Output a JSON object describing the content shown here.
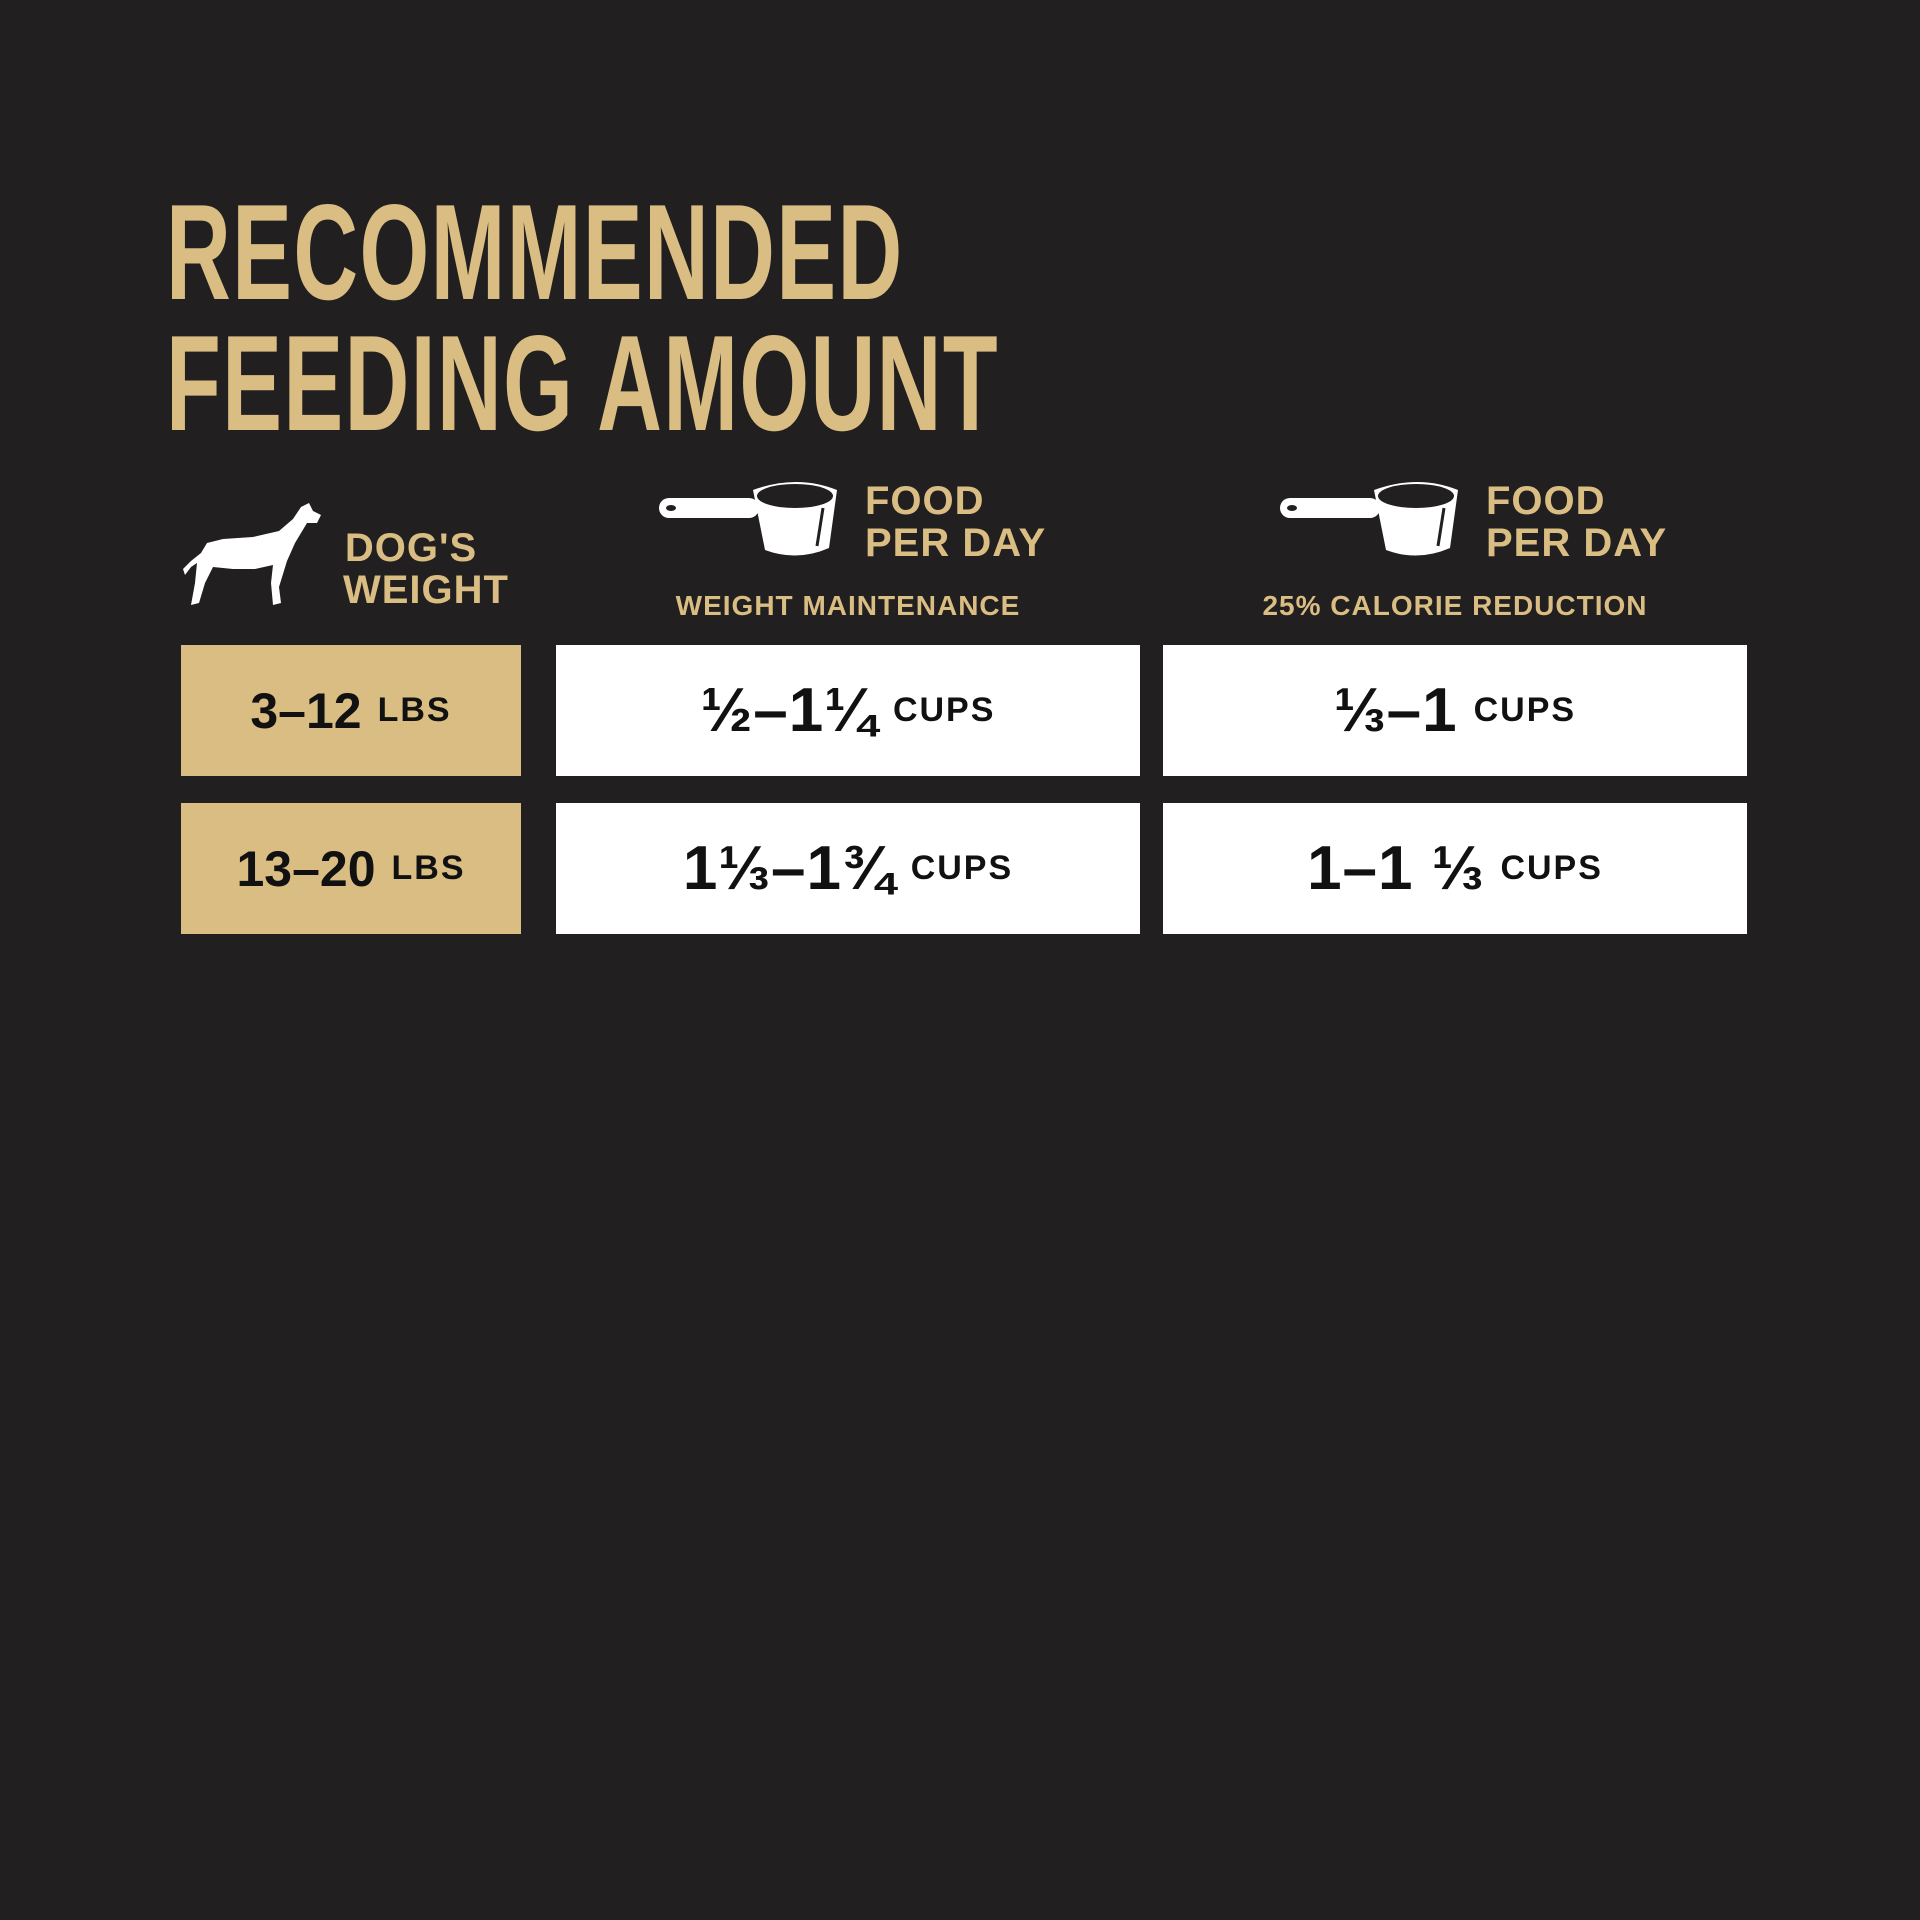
{
  "title": {
    "line1": "RECOMMENDED",
    "line2": "FEEDING AMOUNT"
  },
  "colors": {
    "background": "#221f20",
    "gold": "#d9bd82",
    "white": "#ffffff",
    "text": "#111111"
  },
  "headers": {
    "weight": {
      "icon": "dog-icon",
      "line1": "DOG'S",
      "line2": "WEIGHT"
    },
    "maintenance": {
      "icon": "measuring-cup-icon",
      "line1": "FOOD",
      "line2": "PER DAY",
      "subtitle": "WEIGHT MAINTENANCE"
    },
    "reduction": {
      "icon": "measuring-cup-icon",
      "line1": "FOOD",
      "line2": "PER DAY",
      "subtitle": "25% CALORIE REDUCTION"
    }
  },
  "rows": [
    {
      "weight": "3–12",
      "weight_unit": "LBS",
      "maintenance": "½–1¼",
      "reduction": "⅓–1",
      "unit": "CUPS"
    },
    {
      "weight": "13–20",
      "weight_unit": "LBS",
      "maintenance": "1⅓–1¾",
      "reduction": "1–1 ⅓",
      "unit": "CUPS"
    }
  ]
}
